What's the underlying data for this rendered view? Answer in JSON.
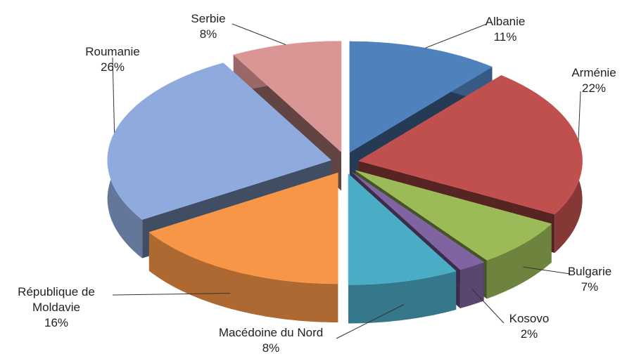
{
  "chart_data": {
    "type": "pie",
    "categories": [
      "Albanie",
      "Arménie",
      "Bulgarie",
      "Kosovo",
      "Macédoine du Nord",
      "République de Moldavie",
      "Roumanie",
      "Serbie"
    ],
    "values": [
      11,
      22,
      7,
      2,
      8,
      16,
      26,
      8
    ],
    "value_labels": [
      "11%",
      "22%",
      "7%",
      "2%",
      "8%",
      "16%",
      "26%",
      "8%"
    ],
    "colors": [
      "#4f81bd",
      "#c0504d",
      "#9bbb59",
      "#8064a2",
      "#4bacc6",
      "#f79646",
      "#8faadc",
      "#d99694"
    ]
  }
}
